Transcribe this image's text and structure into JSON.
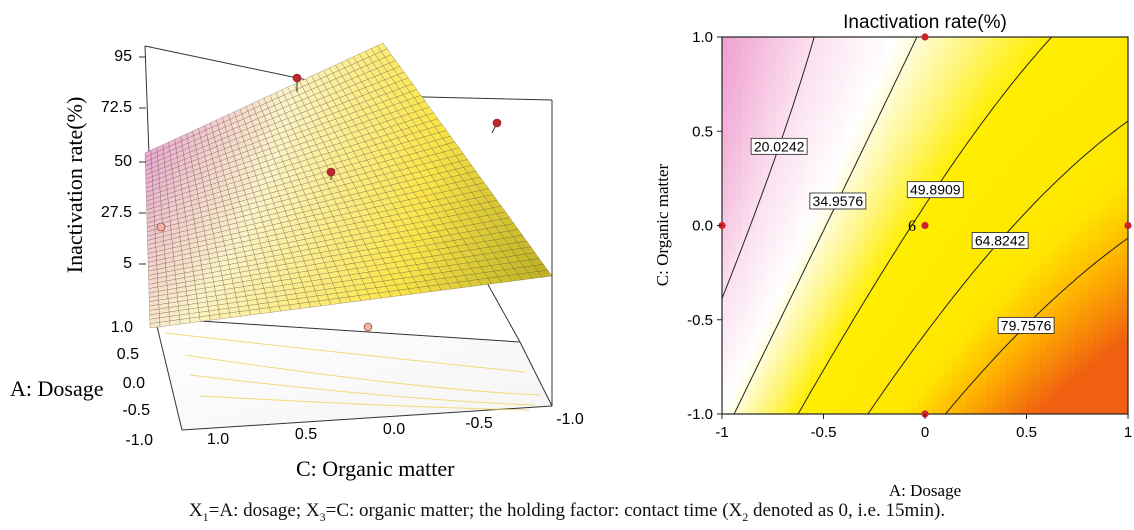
{
  "chart_data": [
    {
      "type": "surface",
      "zlabel": "Inactivation rate(%)",
      "xlabel": "A: Dosage",
      "ylabel": "C: Organic matter",
      "z_ticks": [
        "95",
        "72.5",
        "50",
        "27.5",
        "5"
      ],
      "a_ticks": [
        "1.0",
        "0.5",
        "0.0",
        "-0.5",
        "-1.0"
      ],
      "c_ticks": [
        "1.0",
        "0.5",
        "0.0",
        "-0.5",
        "-1.0"
      ],
      "zlim": [
        5,
        95
      ],
      "corners": [
        {
          "A": -1,
          "C": 1,
          "z": 0
        },
        {
          "A": -1,
          "C": -1,
          "z": 28
        },
        {
          "A": 1,
          "C": -1,
          "z": 92
        },
        {
          "A": 1,
          "C": 1,
          "z": 55
        }
      ],
      "design_points": [
        {
          "A": 1,
          "C": 1,
          "z": 56
        },
        {
          "A": 0,
          "C": 0,
          "z": 47
        },
        {
          "A": 1,
          "C": -1,
          "z": 90
        },
        {
          "A": -1,
          "C": 1,
          "z": 2
        },
        {
          "A": -1,
          "C": -1,
          "z": 30
        }
      ],
      "colors": {
        "low": "#e8a6d4",
        "mid": "#fbe54a",
        "high": "#b3a81c"
      }
    },
    {
      "type": "contour",
      "title": "Inactivation rate(%)",
      "xlabel": "A: Dosage",
      "ylabel": "C: Organic matter",
      "xlim": [
        -1,
        1
      ],
      "ylim": [
        -1,
        1
      ],
      "x_ticks": [
        "-1",
        "-0.5",
        "0",
        "0.5",
        "1"
      ],
      "y_ticks": [
        "1.0",
        "0.5",
        "0.0",
        "-0.5",
        "-1.0"
      ],
      "levels": [
        {
          "label": "20.0242",
          "value": 20.0242
        },
        {
          "label": "34.9576",
          "value": 34.9576
        },
        {
          "label": "49.8909",
          "value": 49.8909
        },
        {
          "label": "64.8242",
          "value": 64.8242
        },
        {
          "label": "79.7576",
          "value": 79.7576
        }
      ],
      "points": [
        {
          "A": 0,
          "C": 1
        },
        {
          "A": -1,
          "C": 0
        },
        {
          "A": 0,
          "C": 0
        },
        {
          "A": 1,
          "C": 0
        },
        {
          "A": 0,
          "C": -1
        }
      ],
      "center_replicates": "6"
    }
  ],
  "caption": {
    "x1": "X",
    "x1_sub": "1",
    "part1": "=A: dosage; X",
    "x3_sub": "3",
    "part2": "=C: organic matter; the holding factor: contact time (X",
    "x2_sub": "2",
    "part3": " denoted as 0, i.e. 15min)."
  }
}
